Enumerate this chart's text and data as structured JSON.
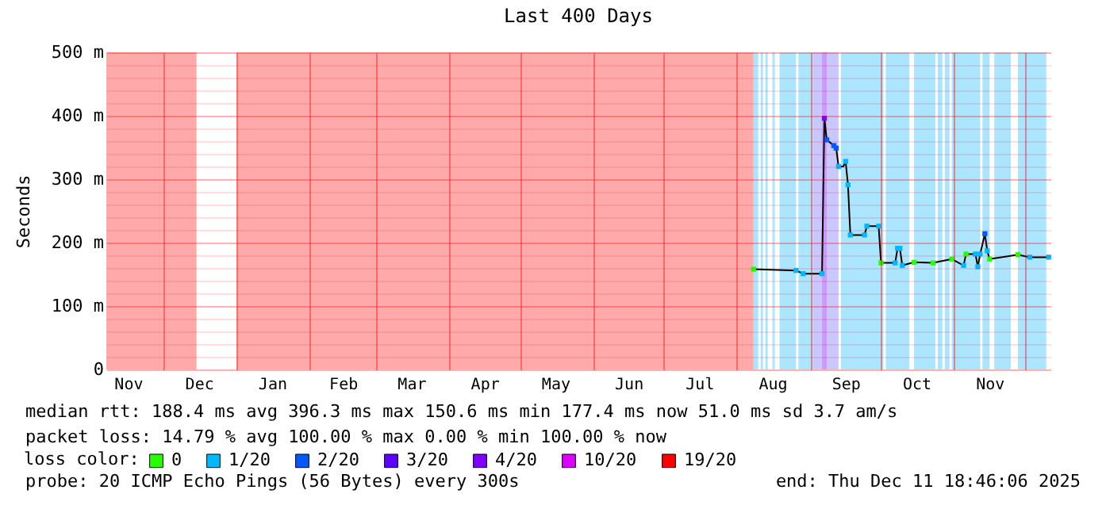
{
  "chart_data": {
    "type": "line",
    "title": "Last 400 Days",
    "ylabel": "Seconds",
    "xlim": [
      "2024-11-06T18:46",
      "2025-12-11T18:46"
    ],
    "xticks": [
      {
        "value": "2024-11-16",
        "label": "Nov"
      },
      {
        "value": "2024-12-01",
        "label": null
      },
      {
        "value": "2024-12-16",
        "label": "Dec"
      },
      {
        "value": "2025-01-01",
        "label": null
      },
      {
        "value": "2025-01-16",
        "label": "Jan"
      },
      {
        "value": "2025-02-01",
        "label": null
      },
      {
        "value": "2025-02-15",
        "label": "Feb"
      },
      {
        "value": "2025-03-01",
        "label": null
      },
      {
        "value": "2025-03-16",
        "label": "Mar"
      },
      {
        "value": "2025-04-01",
        "label": null
      },
      {
        "value": "2025-04-16",
        "label": "Apr"
      },
      {
        "value": "2025-05-01",
        "label": null
      },
      {
        "value": "2025-05-16",
        "label": "May"
      },
      {
        "value": "2025-06-01",
        "label": null
      },
      {
        "value": "2025-06-16",
        "label": "Jun"
      },
      {
        "value": "2025-07-01",
        "label": null
      },
      {
        "value": "2025-07-16",
        "label": "Jul"
      },
      {
        "value": "2025-08-01",
        "label": null
      },
      {
        "value": "2025-08-16",
        "label": "Aug"
      },
      {
        "value": "2025-09-01",
        "label": null
      },
      {
        "value": "2025-09-16",
        "label": "Sep"
      },
      {
        "value": "2025-10-01",
        "label": null
      },
      {
        "value": "2025-10-16",
        "label": "Oct"
      },
      {
        "value": "2025-11-01",
        "label": null
      },
      {
        "value": "2025-11-16",
        "label": "Nov"
      },
      {
        "value": "2025-12-01",
        "label": null
      }
    ],
    "ylim": [
      0,
      500
    ],
    "yticks": [
      0,
      {
        "value": 20,
        "label": null
      },
      {
        "value": 40,
        "label": null
      },
      {
        "value": 60,
        "label": null
      },
      {
        "value": 80,
        "label": null
      },
      {
        "value": 100,
        "label": "100 m"
      },
      {
        "value": 120,
        "label": null
      },
      {
        "value": 140,
        "label": null
      },
      {
        "value": 160,
        "label": null
      },
      {
        "value": 180,
        "label": null
      },
      {
        "value": 200,
        "label": "200 m"
      },
      {
        "value": 220,
        "label": null
      },
      {
        "value": 240,
        "label": null
      },
      {
        "value": 260,
        "label": null
      },
      {
        "value": 280,
        "label": null
      },
      {
        "value": 300,
        "label": "300 m"
      },
      {
        "value": 320,
        "label": null
      },
      {
        "value": 340,
        "label": null
      },
      {
        "value": 360,
        "label": null
      },
      {
        "value": 380,
        "label": null
      },
      {
        "value": 400,
        "label": "400 m"
      },
      {
        "value": 420,
        "label": null
      },
      {
        "value": 440,
        "label": null
      },
      {
        "value": 460,
        "label": null
      },
      {
        "value": 480,
        "label": null
      },
      {
        "value": 500,
        "label": "500 m"
      }
    ],
    "grid": true,
    "marker": "square",
    "legend": "bottom",
    "legend_title": "loss color:",
    "x": [
      "2025-08-08",
      "2025-08-26",
      "2025-08-29",
      "2025-09-06",
      "2025-09-07",
      "2025-09-08",
      "2025-09-11",
      "2025-09-12",
      "2025-09-13",
      "2025-09-15",
      "2025-09-16",
      "2025-09-17",
      "2025-09-18",
      "2025-09-24",
      "2025-09-25",
      "2025-09-30",
      "2025-10-01",
      "2025-10-07",
      "2025-10-08",
      "2025-10-09",
      "2025-10-10",
      "2025-10-15",
      "2025-10-23",
      "2025-10-31",
      "2025-11-05",
      "2025-11-06",
      "2025-11-10",
      "2025-11-11",
      "2025-11-12",
      "2025-11-14",
      "2025-11-15",
      "2025-11-16",
      "2025-11-28",
      "2025-12-03",
      "2025-12-11"
    ],
    "series": [
      {
        "color": "#000000",
        "marker": "none",
        "values": [
          158,
          156,
          151,
          151,
          396,
          362,
          353,
          349,
          320,
          320,
          328,
          291,
          212,
          212,
          226,
          226,
          168,
          168,
          191,
          191,
          164,
          169,
          168,
          174,
          164,
          182,
          182,
          162,
          182,
          214,
          187,
          174,
          181,
          177,
          177
        ]
      },
      {
        "type": "scatter",
        "name": "0",
        "color": "#26ff00",
        "values": [
          158,
          null,
          null,
          null,
          null,
          null,
          null,
          null,
          null,
          null,
          null,
          null,
          null,
          null,
          null,
          null,
          168,
          null,
          null,
          null,
          null,
          169,
          168,
          174,
          null,
          182,
          null,
          null,
          null,
          null,
          null,
          174,
          181,
          null,
          null
        ]
      },
      {
        "type": "scatter",
        "name": "1/20",
        "color": "#00b8ff",
        "values": [
          null,
          156,
          151,
          151,
          null,
          null,
          null,
          null,
          320,
          null,
          328,
          291,
          212,
          212,
          226,
          226,
          null,
          168,
          191,
          191,
          164,
          null,
          null,
          null,
          164,
          null,
          182,
          162,
          182,
          null,
          187,
          null,
          null,
          177,
          177
        ]
      },
      {
        "type": "scatter",
        "name": "2/20",
        "color": "#0059ff",
        "values": [
          null,
          null,
          null,
          null,
          null,
          362,
          353,
          349,
          null,
          null,
          null,
          null,
          null,
          null,
          null,
          null,
          null,
          null,
          null,
          null,
          null,
          null,
          null,
          null,
          null,
          null,
          null,
          null,
          null,
          214,
          null,
          null,
          null,
          null,
          null
        ]
      },
      {
        "type": "scatter",
        "name": "3/20",
        "color": "#5e00ff",
        "values": [
          null,
          null,
          null,
          null,
          null,
          null,
          null,
          null,
          null,
          null,
          null,
          null,
          null,
          null,
          null,
          null,
          null,
          null,
          null,
          null,
          null,
          null,
          null,
          null,
          null,
          null,
          null,
          null,
          null,
          null,
          null,
          null,
          null,
          null,
          null
        ]
      },
      {
        "type": "scatter",
        "name": "4/20",
        "color": "#7e00ff",
        "values": [
          null,
          null,
          null,
          null,
          396,
          null,
          null,
          null,
          null,
          null,
          null,
          null,
          null,
          null,
          null,
          null,
          null,
          null,
          null,
          null,
          null,
          null,
          null,
          null,
          null,
          null,
          null,
          null,
          null,
          null,
          null,
          null,
          null,
          null,
          null
        ]
      },
      {
        "type": "scatter",
        "name": "10/20",
        "color": "#dd00ff",
        "values": [
          null,
          null,
          null,
          null,
          null,
          null,
          null,
          null,
          null,
          null,
          null,
          null,
          null,
          null,
          null,
          null,
          null,
          null,
          null,
          null,
          null,
          null,
          null,
          null,
          null,
          null,
          null,
          null,
          null,
          null,
          null,
          null,
          null,
          null,
          null
        ]
      },
      {
        "type": "scatter",
        "name": "19/20",
        "color": "#ff0000",
        "values": [
          null,
          null,
          null,
          null,
          null,
          null,
          null,
          null,
          null,
          null,
          null,
          null,
          null,
          null,
          null,
          null,
          null,
          null,
          null,
          null,
          null,
          null,
          null,
          null,
          null,
          null,
          null,
          null,
          null,
          null,
          null,
          null,
          null,
          null,
          null
        ]
      }
    ],
    "bands": [
      {
        "axis": "x",
        "from": "2024-11-06T18:46",
        "to": "2024-12-15",
        "color": "#ffaaaa"
      },
      {
        "axis": "x",
        "from": "2025-01-01",
        "to": "2025-08-08",
        "color": "#ffaaaa"
      },
      {
        "axis": "x",
        "from": "2025-08-08",
        "to": "2025-08-10",
        "color": "#aae6ff"
      },
      {
        "axis": "x",
        "from": "2025-08-11",
        "to": "2025-08-12",
        "color": "#aae6ff"
      },
      {
        "axis": "x",
        "from": "2025-08-13",
        "to": "2025-08-14",
        "color": "#aae6ff"
      },
      {
        "axis": "x",
        "from": "2025-08-16",
        "to": "2025-08-17",
        "color": "#aae6ff"
      },
      {
        "axis": "x",
        "from": "2025-08-19",
        "to": "2025-08-26",
        "color": "#aae6ff"
      },
      {
        "axis": "x",
        "from": "2025-08-27",
        "to": "2025-09-02",
        "color": "#aae6ff"
      },
      {
        "axis": "x",
        "from": "2025-09-02",
        "to": "2025-09-06",
        "color": "#c8c8ff"
      },
      {
        "axis": "x",
        "from": "2025-09-06",
        "to": "2025-09-08",
        "color": "#cc99ff"
      },
      {
        "axis": "x",
        "from": "2025-09-08",
        "to": "2025-09-13",
        "color": "#c8c8ff"
      },
      {
        "axis": "x",
        "from": "2025-09-14",
        "to": "2025-10-02",
        "color": "#aae6ff"
      },
      {
        "axis": "x",
        "from": "2025-10-03",
        "to": "2025-10-13",
        "color": "#aae6ff"
      },
      {
        "axis": "x",
        "from": "2025-10-15",
        "to": "2025-10-24",
        "color": "#aae6ff"
      },
      {
        "axis": "x",
        "from": "2025-10-25",
        "to": "2025-10-27",
        "color": "#aae6ff"
      },
      {
        "axis": "x",
        "from": "2025-10-28",
        "to": "2025-10-30",
        "color": "#aae6ff"
      },
      {
        "axis": "x",
        "from": "2025-10-31",
        "to": "2025-11-12",
        "color": "#aae6ff"
      },
      {
        "axis": "x",
        "from": "2025-11-13",
        "to": "2025-11-16",
        "color": "#aae6ff"
      },
      {
        "axis": "x",
        "from": "2025-11-18",
        "to": "2025-11-25",
        "color": "#aae6ff"
      },
      {
        "axis": "x",
        "from": "2025-11-28",
        "to": "2025-12-10",
        "color": "#aae6ff"
      }
    ],
    "annotations": [
      "median rtt:  188.4 ms avg  396.3 ms max  150.6 ms min  177.4 ms now  51.0 ms sd  3.7   am/s",
      "packet loss: 14.79 % avg  100.00 % max  0.00 % min  100.00 % now",
      "probe:        20 ICMP Echo Pings (56 Bytes) every 300s",
      "end: Thu Dec 11 18:46:06 2025"
    ]
  }
}
